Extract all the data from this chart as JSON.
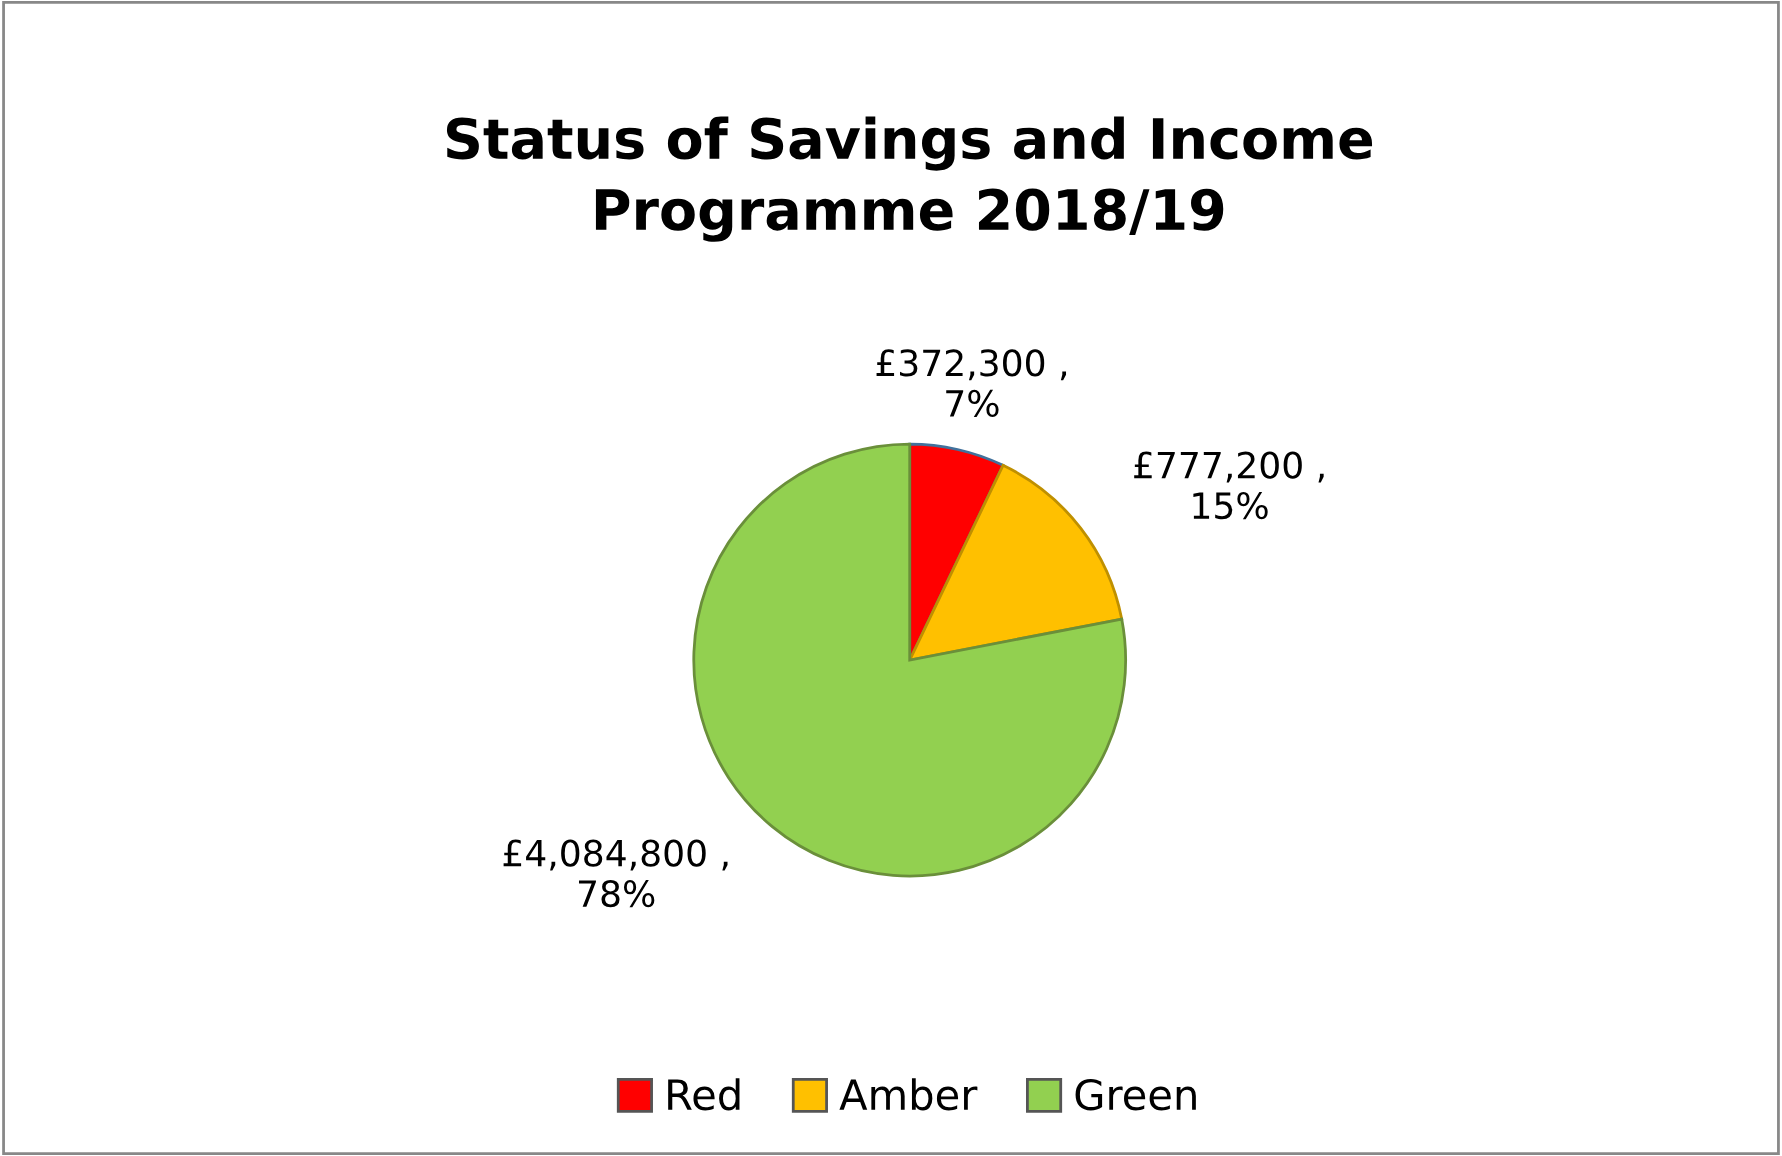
{
  "chart_data": {
    "type": "pie",
    "title": "Status of Savings and Income Programme 2018/19",
    "categories": [
      "Red",
      "Amber",
      "Green"
    ],
    "values": [
      372300,
      777200,
      4084800
    ],
    "colors": [
      "#ff0000",
      "#ffc000",
      "#92d050"
    ],
    "value_labels": [
      "£372,300 , 7%",
      "£777,200 , 15%",
      "£4,084,800 , 78%"
    ],
    "legend": "bottom"
  }
}
